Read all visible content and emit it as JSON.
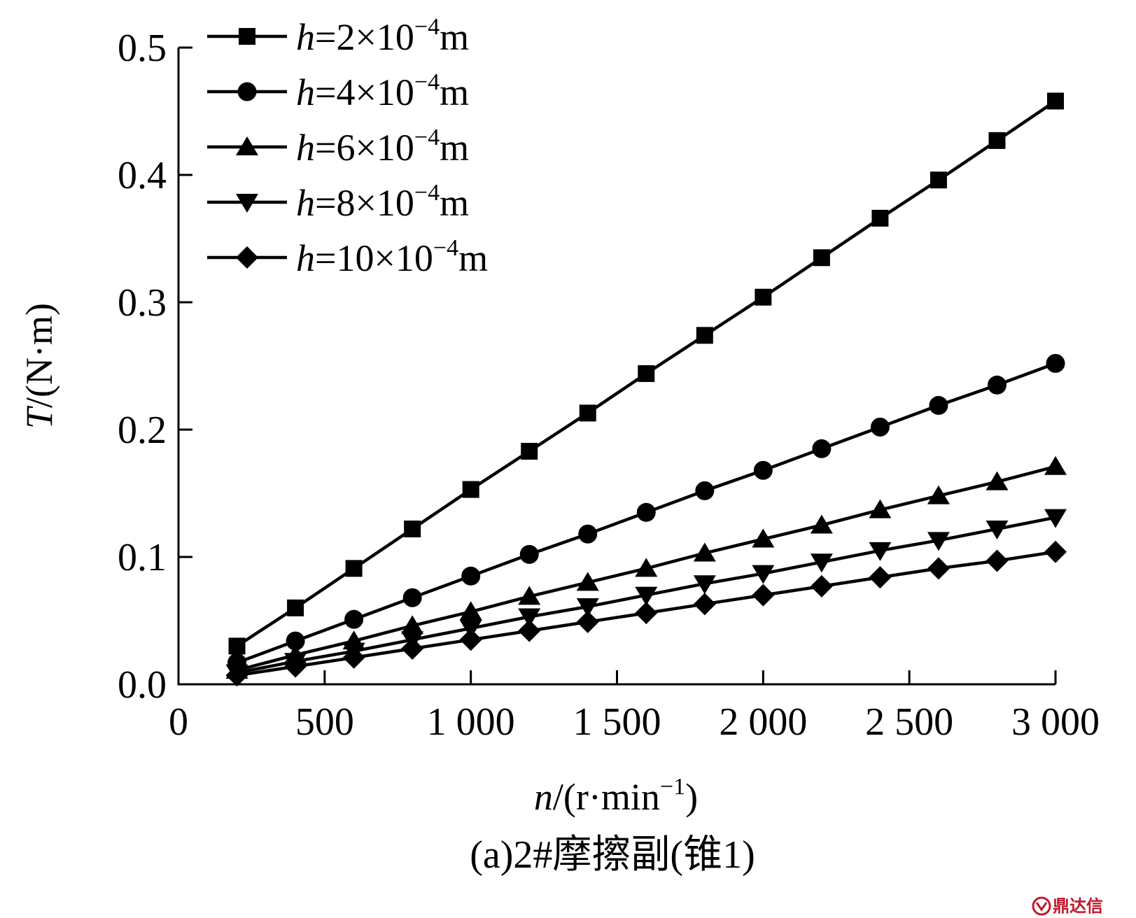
{
  "chart_data": {
    "type": "line",
    "x": [
      200,
      400,
      600,
      800,
      1000,
      1200,
      1400,
      1600,
      1800,
      2000,
      2200,
      2400,
      2600,
      2800,
      3000
    ],
    "series": [
      {
        "name": "h=2×10⁻⁴m",
        "legend": {
          "var": "h",
          "rest": "=2×10",
          "exp": "−4",
          "unit": "m"
        },
        "marker": "square",
        "values": [
          0.03,
          0.06,
          0.091,
          0.122,
          0.153,
          0.183,
          0.213,
          0.244,
          0.274,
          0.304,
          0.335,
          0.366,
          0.396,
          0.427,
          0.458
        ]
      },
      {
        "name": "h=4×10⁻⁴m",
        "legend": {
          "var": "h",
          "rest": "=4×10",
          "exp": "−4",
          "unit": "m"
        },
        "marker": "circle",
        "values": [
          0.017,
          0.034,
          0.051,
          0.068,
          0.085,
          0.102,
          0.118,
          0.135,
          0.152,
          0.168,
          0.185,
          0.202,
          0.219,
          0.235,
          0.252
        ]
      },
      {
        "name": "h=6×10⁻⁴m",
        "legend": {
          "var": "h",
          "rest": "=6×10",
          "exp": "−4",
          "unit": "m"
        },
        "marker": "triangle-up",
        "values": [
          0.011,
          0.023,
          0.034,
          0.046,
          0.057,
          0.069,
          0.08,
          0.091,
          0.103,
          0.114,
          0.125,
          0.137,
          0.148,
          0.159,
          0.171
        ]
      },
      {
        "name": "h=8×10⁻⁴m",
        "legend": {
          "var": "h",
          "rest": "=8×10",
          "exp": "−4",
          "unit": "m"
        },
        "marker": "triangle-down",
        "values": [
          0.009,
          0.018,
          0.026,
          0.035,
          0.044,
          0.053,
          0.061,
          0.07,
          0.079,
          0.087,
          0.096,
          0.105,
          0.113,
          0.122,
          0.131
        ]
      },
      {
        "name": "h=10×10⁻⁴m",
        "legend": {
          "var": "h",
          "rest": "=10×10",
          "exp": "−4",
          "unit": "m"
        },
        "marker": "diamond",
        "values": [
          0.007,
          0.014,
          0.021,
          0.028,
          0.035,
          0.042,
          0.049,
          0.056,
          0.063,
          0.07,
          0.077,
          0.084,
          0.091,
          0.097,
          0.104
        ]
      }
    ],
    "xlim": [
      0,
      3000
    ],
    "ylim": [
      0,
      0.5
    ],
    "x_ticks": [
      0,
      500,
      1000,
      1500,
      2000,
      2500,
      3000
    ],
    "x_tick_labels": [
      "0",
      "500",
      "1 000",
      "1 500",
      "2 000",
      "2 500",
      "3 000"
    ],
    "y_ticks": [
      0,
      0.1,
      0.2,
      0.3,
      0.4,
      0.5
    ],
    "y_tick_labels": [
      "0.0",
      "0.1",
      "0.2",
      "0.3",
      "0.4",
      "0.5"
    ],
    "xlabel": {
      "var": "n",
      "rest": "/(r·min",
      "exp": "−1",
      "close": ")"
    },
    "ylabel": {
      "var": "T",
      "rest": "/(N·m)"
    },
    "caption": "(a)2#摩擦副(锥1)",
    "grid": false,
    "legend_position": "top-left",
    "colors": {
      "line": "#000000",
      "marker": "#000000",
      "watermark": "#c0182b"
    }
  },
  "watermark": {
    "text": "鼎达信",
    "icon": "dingdaxin-logo-icon"
  }
}
